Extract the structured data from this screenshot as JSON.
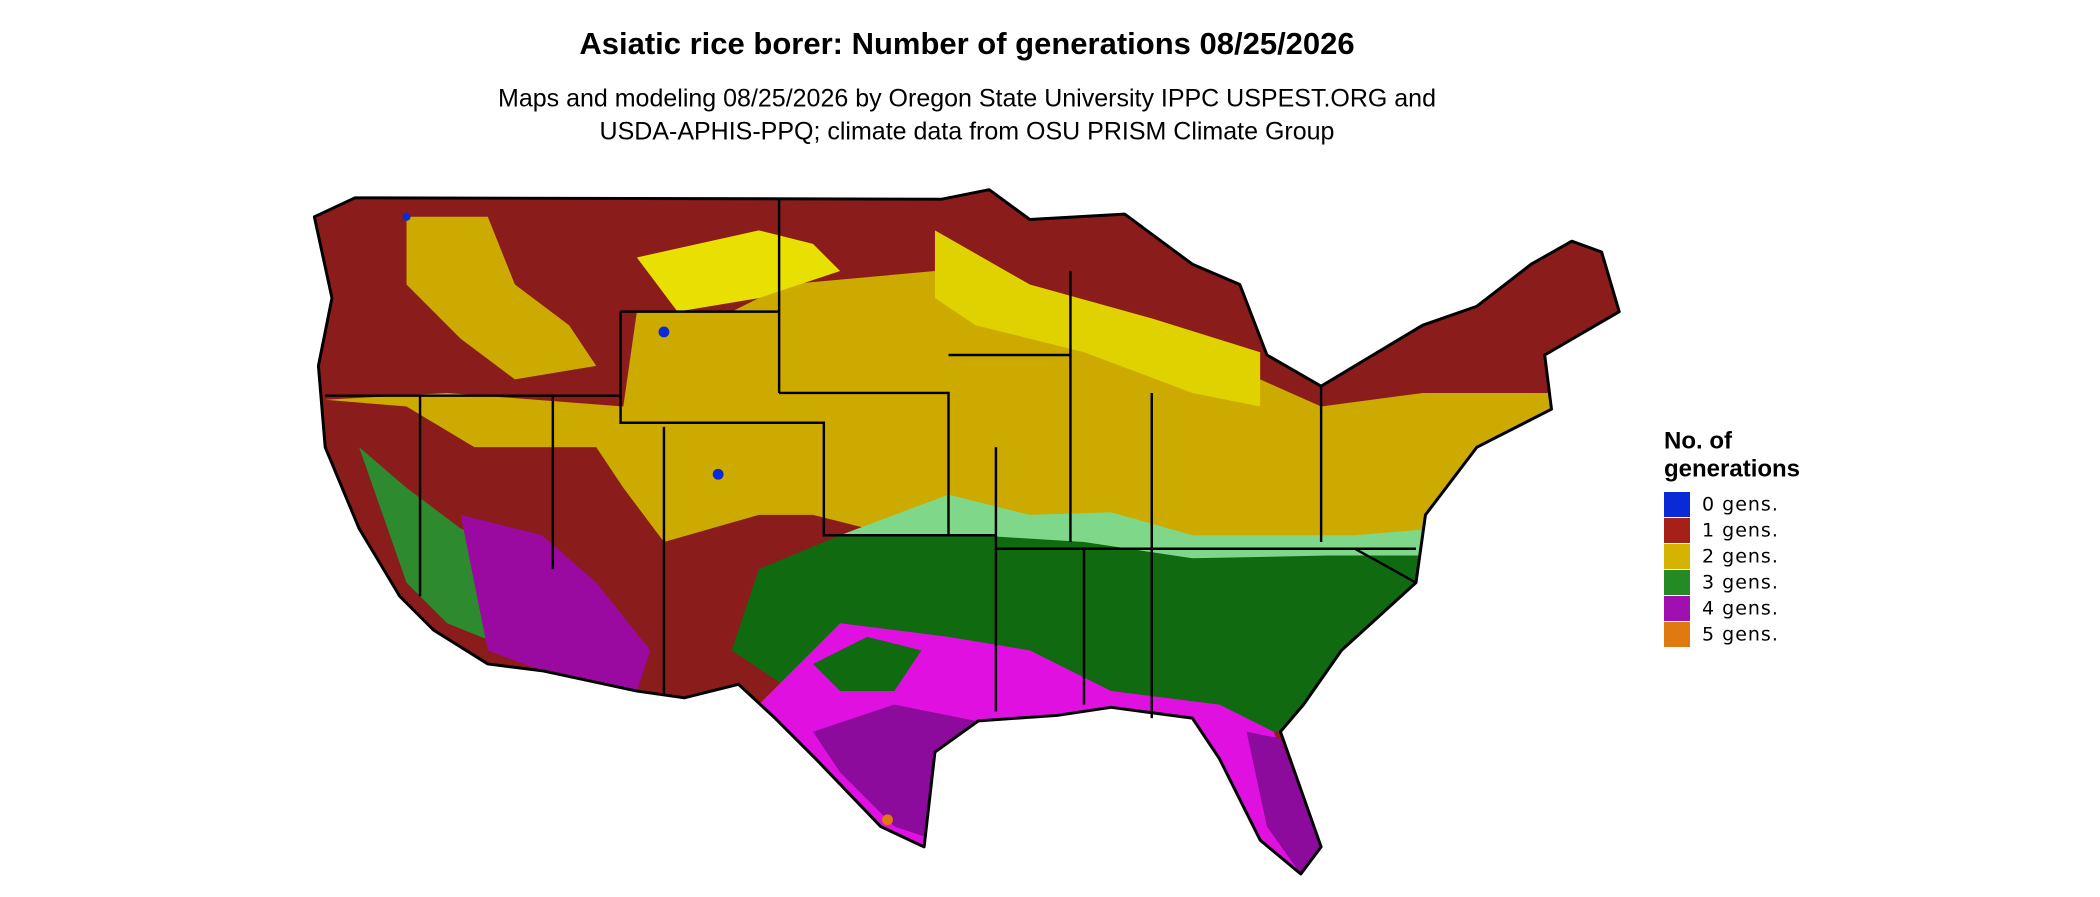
{
  "header": {
    "title": "Asiatic rice borer: Number of generations 08/25/2026",
    "subtitle": [
      "Maps and modeling 08/25/2026 by Oregon State University IPPC USPEST.ORG and",
      "USDA-APHIS-PPQ; climate data from OSU PRISM Climate Group"
    ]
  },
  "legend": {
    "title": [
      "No. of",
      "generations"
    ],
    "items": [
      {
        "label": "0 gens.",
        "color": "#0a2ad8"
      },
      {
        "label": "1 gens.",
        "color": "#a52018"
      },
      {
        "label": "2 gens.",
        "color": "#d4b400"
      },
      {
        "label": "3 gens.",
        "color": "#248a24"
      },
      {
        "label": "4 gens.",
        "color": "#a010b0"
      },
      {
        "label": "5 gens.",
        "color": "#e07a10"
      }
    ]
  }
}
